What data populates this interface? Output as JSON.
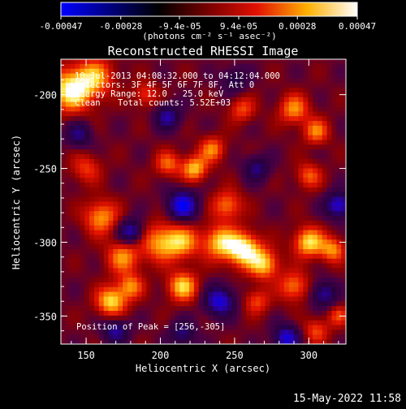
{
  "chart_data": {
    "type": "heatmap",
    "title": "Reconstructed RHESSI Image",
    "xlabel": "Heliocentric X (arcsec)",
    "ylabel": "Heliocentric Y (arcsec)",
    "xlim": [
      133,
      325
    ],
    "ylim": [
      -369,
      -176
    ],
    "x_ticks": [
      150,
      200,
      250,
      300
    ],
    "y_ticks": [
      -350,
      -300,
      -250,
      -200
    ],
    "colorbar": {
      "min": -0.00047,
      "max": 0.00047,
      "tick_values": [
        -0.00047,
        -0.00028,
        -9.4e-05,
        9.4e-05,
        0.00028,
        0.00047
      ],
      "tick_labels": [
        "-0.00047",
        "-0.00028",
        "-9.4e-05",
        "9.4e-05",
        "0.00028",
        "0.00047"
      ],
      "unit_label": "(photons cm⁻² s⁻¹ asec⁻²)"
    },
    "annotations": {
      "time_range": "10-Jul-2013 04:08:32.000 to 04:12:04.000",
      "detectors": "Detectors: 3F 4F 5F 6F 7F 8F, Att 0",
      "energy_range": "Energy Range: 12.0 - 25.0 keV",
      "algorithm": "Clean",
      "total_counts": "Total counts: 5.52E+03",
      "peak_position": "Position of Peak = [256,-305]"
    },
    "peak": {
      "x": 256,
      "y": -305
    },
    "blobs": [
      {
        "x": 140,
        "y": -197,
        "amp": 0.00046,
        "s": 10
      },
      {
        "x": 156,
        "y": -188,
        "amp": 0.0003,
        "s": 9
      },
      {
        "x": 150,
        "y": -250,
        "amp": 0.0002,
        "s": 7
      },
      {
        "x": 160,
        "y": -283,
        "amp": 0.00032,
        "s": 8
      },
      {
        "x": 175,
        "y": -310,
        "amp": 0.0003,
        "s": 8
      },
      {
        "x": 167,
        "y": -340,
        "amp": 0.0004,
        "s": 7
      },
      {
        "x": 180,
        "y": -330,
        "amp": 0.00028,
        "s": 6
      },
      {
        "x": 200,
        "y": -300,
        "amp": 0.00032,
        "s": 9
      },
      {
        "x": 215,
        "y": -300,
        "amp": 0.0003,
        "s": 8
      },
      {
        "x": 215,
        "y": -330,
        "amp": 0.00038,
        "s": 7
      },
      {
        "x": 223,
        "y": -250,
        "amp": 0.00036,
        "s": 6
      },
      {
        "x": 235,
        "y": -237,
        "amp": 0.00028,
        "s": 6
      },
      {
        "x": 205,
        "y": -247,
        "amp": 0.00025,
        "s": 6
      },
      {
        "x": 245,
        "y": -275,
        "amp": 0.00028,
        "s": 7
      },
      {
        "x": 240,
        "y": -300,
        "amp": 0.00036,
        "s": 8
      },
      {
        "x": 256,
        "y": -305,
        "amp": 0.00047,
        "s": 8
      },
      {
        "x": 270,
        "y": -315,
        "amp": 0.00036,
        "s": 7
      },
      {
        "x": 265,
        "y": -340,
        "amp": 0.00022,
        "s": 6
      },
      {
        "x": 255,
        "y": -210,
        "amp": 0.00022,
        "s": 6
      },
      {
        "x": 290,
        "y": -210,
        "amp": 0.0003,
        "s": 7
      },
      {
        "x": 305,
        "y": -225,
        "amp": 0.00028,
        "s": 6
      },
      {
        "x": 300,
        "y": -255,
        "amp": 0.00024,
        "s": 6
      },
      {
        "x": 300,
        "y": -300,
        "amp": 0.0004,
        "s": 7
      },
      {
        "x": 316,
        "y": -305,
        "amp": 0.0003,
        "s": 6
      },
      {
        "x": 290,
        "y": -330,
        "amp": 0.00028,
        "s": 7
      },
      {
        "x": 305,
        "y": -360,
        "amp": 0.00022,
        "s": 6
      },
      {
        "x": 320,
        "y": -350,
        "amp": 0.0002,
        "s": 5
      },
      {
        "x": 190,
        "y": -200,
        "amp": 0.0002,
        "s": 6
      },
      {
        "x": 215,
        "y": -275,
        "amp": -0.00045,
        "s": 7
      },
      {
        "x": 240,
        "y": -340,
        "amp": -0.0004,
        "s": 7
      },
      {
        "x": 285,
        "y": -365,
        "amp": -0.0004,
        "s": 6
      },
      {
        "x": 180,
        "y": -293,
        "amp": -0.00035,
        "s": 6
      },
      {
        "x": 205,
        "y": -215,
        "amp": -0.0003,
        "s": 6
      },
      {
        "x": 145,
        "y": -227,
        "amp": -0.00025,
        "s": 6
      },
      {
        "x": 310,
        "y": -335,
        "amp": -0.0003,
        "s": 6
      },
      {
        "x": 320,
        "y": -275,
        "amp": -0.0004,
        "s": 6
      },
      {
        "x": 170,
        "y": -360,
        "amp": -0.0003,
        "s": 6
      },
      {
        "x": 215,
        "y": -362,
        "amp": -0.00025,
        "s": 6
      },
      {
        "x": 265,
        "y": -250,
        "amp": -0.00025,
        "s": 6
      },
      {
        "x": 250,
        "y": -190,
        "amp": -0.0002,
        "s": 6
      }
    ]
  },
  "timestamp": "15-May-2022 11:58"
}
